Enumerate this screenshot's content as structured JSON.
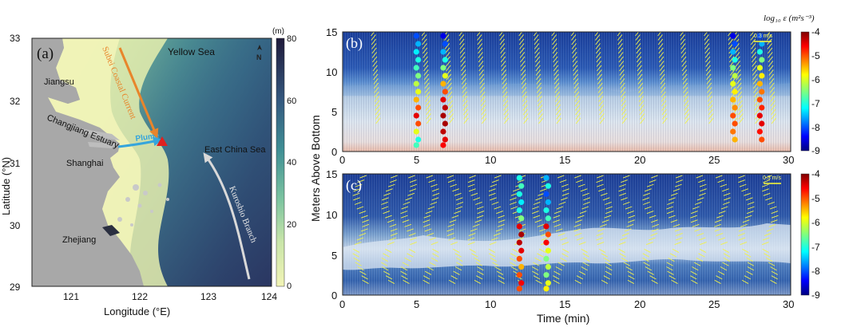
{
  "panels": {
    "a": {
      "label": "(a)",
      "xlabel": "Longitude (°E)",
      "ylabel": "Latitude (°N)",
      "xticks": [
        "121",
        "122",
        "123",
        "124"
      ],
      "yticks": [
        "33",
        "32",
        "31",
        "30",
        "29"
      ],
      "colorbar": {
        "unit": "(m)",
        "ticks": [
          "80",
          "60",
          "40",
          "20",
          "0"
        ],
        "range": [
          0,
          80
        ]
      },
      "places": {
        "yellow_sea": "Yellow Sea",
        "jiangsu": "Jiangsu",
        "changjiang": "Changjiang Estuary",
        "shanghai": "Shanghai",
        "zhejiang": "Zhejiang",
        "ecs": "East China Sea",
        "subei": "Subei Coastal Current",
        "kuroshio": "Kuroshio Branch",
        "plume": "Plume",
        "north": "N"
      },
      "colors": {
        "land": "#a7a7a7",
        "shallow": "#f1f3b4",
        "mid": "#5aa79b",
        "deep": "#2c3f66",
        "subei_arrow": "#e8852b",
        "kuroshio_arrow": "#d9d9d9",
        "plume_arrow": "#35a5dc",
        "station": "#e0211f"
      }
    },
    "b": {
      "label": "(b)",
      "scale": "0.3 m/s",
      "cbar_title": "log₁₀ ε (m²s⁻³)",
      "cbar_ticks": [
        "-4",
        "-5",
        "-6",
        "-7",
        "-8",
        "-9"
      ]
    },
    "c": {
      "label": "(c)",
      "scale": "0.3 m/s",
      "cbar_ticks": [
        "-4",
        "-5",
        "-6",
        "-7",
        "-8",
        "-9"
      ]
    },
    "shared": {
      "ylabel": "Meters Above Bottom",
      "xlabel": "Time (min)",
      "xticks": [
        "0",
        "5",
        "10",
        "15",
        "20",
        "25",
        "30"
      ],
      "yticks": [
        "15",
        "10",
        "5",
        "0"
      ]
    }
  },
  "chart_data": [
    {
      "type": "heatmap",
      "panel": "(a)",
      "description_source": "bathymetry map",
      "xlim": [
        120.5,
        124
      ],
      "ylim": [
        29,
        33
      ],
      "zlim": [
        0,
        80
      ],
      "station": {
        "lon": 122.3,
        "lat": 31.42
      }
    },
    {
      "type": "heatmap",
      "panel": "(b)",
      "xlim": [
        0,
        30
      ],
      "ylim": [
        0,
        15
      ],
      "clim": [
        -9,
        -4
      ],
      "velocity_profile_times": [
        1.9,
        5.3,
        6.8,
        7.8,
        9.0,
        10.5,
        11.8,
        12.8,
        14.0,
        15.3,
        16.9,
        18.4,
        19.6,
        21.1,
        22.6,
        24.2,
        25.8,
        26.2,
        27.3,
        28.4
      ],
      "dissipation_casts": [
        {
          "time": 5.0,
          "z": [
            14.5,
            13.5,
            12.5,
            11.5,
            10.5,
            9.5,
            8.5,
            7.5,
            6.5,
            5.5,
            4.5,
            3.5,
            2.5,
            1.5,
            0.8
          ],
          "eps": [
            -8.0,
            -7.5,
            -7.2,
            -7.0,
            -6.8,
            -6.5,
            -6.2,
            -6.0,
            -5.5,
            -5.0,
            -4.5,
            -5.0,
            -6.0,
            -7.0,
            -6.8
          ]
        },
        {
          "time": 6.8,
          "z": [
            14.5,
            13.5,
            12.5,
            11.5,
            10.5,
            9.5,
            8.5,
            7.5,
            6.5,
            5.5,
            4.5,
            3.5,
            2.5,
            1.5,
            0.8
          ],
          "eps": [
            -8.5,
            -8.0,
            -7.5,
            -7.0,
            -6.5,
            -6.0,
            -5.5,
            -5.0,
            -4.5,
            -4.3,
            -4.2,
            -4.2,
            -4.3,
            -4.5,
            -4.6
          ]
        },
        {
          "time": 26.2,
          "z": [
            14.5,
            13.5,
            12.5,
            11.5,
            10.5,
            9.5,
            8.5,
            7.5,
            6.5,
            5.5,
            4.5,
            3.5,
            2.5,
            1.5
          ],
          "eps": [
            -8.5,
            -8.0,
            -7.5,
            -7.0,
            -6.5,
            -6.2,
            -6.0,
            -5.8,
            -5.5,
            -5.3,
            -5.0,
            -5.0,
            -5.2,
            -5.5
          ]
        },
        {
          "time": 28.0,
          "z": [
            14.5,
            13.5,
            12.5,
            11.5,
            10.5,
            9.5,
            8.5,
            7.5,
            6.5,
            5.5,
            4.5,
            3.5,
            2.5,
            1.5
          ],
          "eps": [
            -8.0,
            -7.5,
            -7.0,
            -6.5,
            -6.0,
            -5.8,
            -5.5,
            -5.2,
            -5.0,
            -4.8,
            -4.5,
            -4.5,
            -4.7,
            -5.0
          ]
        }
      ]
    },
    {
      "type": "heatmap",
      "panel": "(c)",
      "xlim": [
        0,
        30
      ],
      "ylim": [
        0,
        15
      ],
      "clim": [
        -9,
        -4
      ],
      "velocity_profile_times": [
        1.0,
        2.9,
        4.2,
        5.7,
        7.3,
        8.7,
        10.1,
        11.5,
        13.0,
        14.4,
        15.8,
        17.3,
        18.8,
        20.4,
        22.0,
        23.6,
        25.2,
        26.8,
        28.4
      ],
      "dissipation_casts": [
        {
          "time": 11.9,
          "z": [
            14.5,
            13.5,
            12.5,
            11.5,
            10.5,
            9.5,
            8.5,
            7.5,
            6.5,
            5.5,
            4.5,
            3.5,
            2.5,
            1.5,
            0.8
          ],
          "eps": [
            -7.0,
            -6.8,
            -7.0,
            -7.2,
            -7.0,
            -6.5,
            -4.5,
            -4.2,
            -4.3,
            -4.5,
            -5.0,
            -5.5,
            -5.0,
            -4.6,
            -5.0
          ]
        },
        {
          "time": 13.7,
          "z": [
            14.5,
            13.5,
            12.5,
            11.5,
            10.5,
            9.5,
            8.5,
            7.5,
            6.5,
            5.5,
            4.5,
            3.5,
            2.5,
            1.5,
            0.8
          ],
          "eps": [
            -7.5,
            -7.0,
            -8.0,
            -7.5,
            -7.0,
            -6.8,
            -4.5,
            -5.0,
            -4.6,
            -6.0,
            -6.5,
            -6.2,
            -6.5,
            -6.0,
            -5.8
          ]
        }
      ]
    }
  ]
}
